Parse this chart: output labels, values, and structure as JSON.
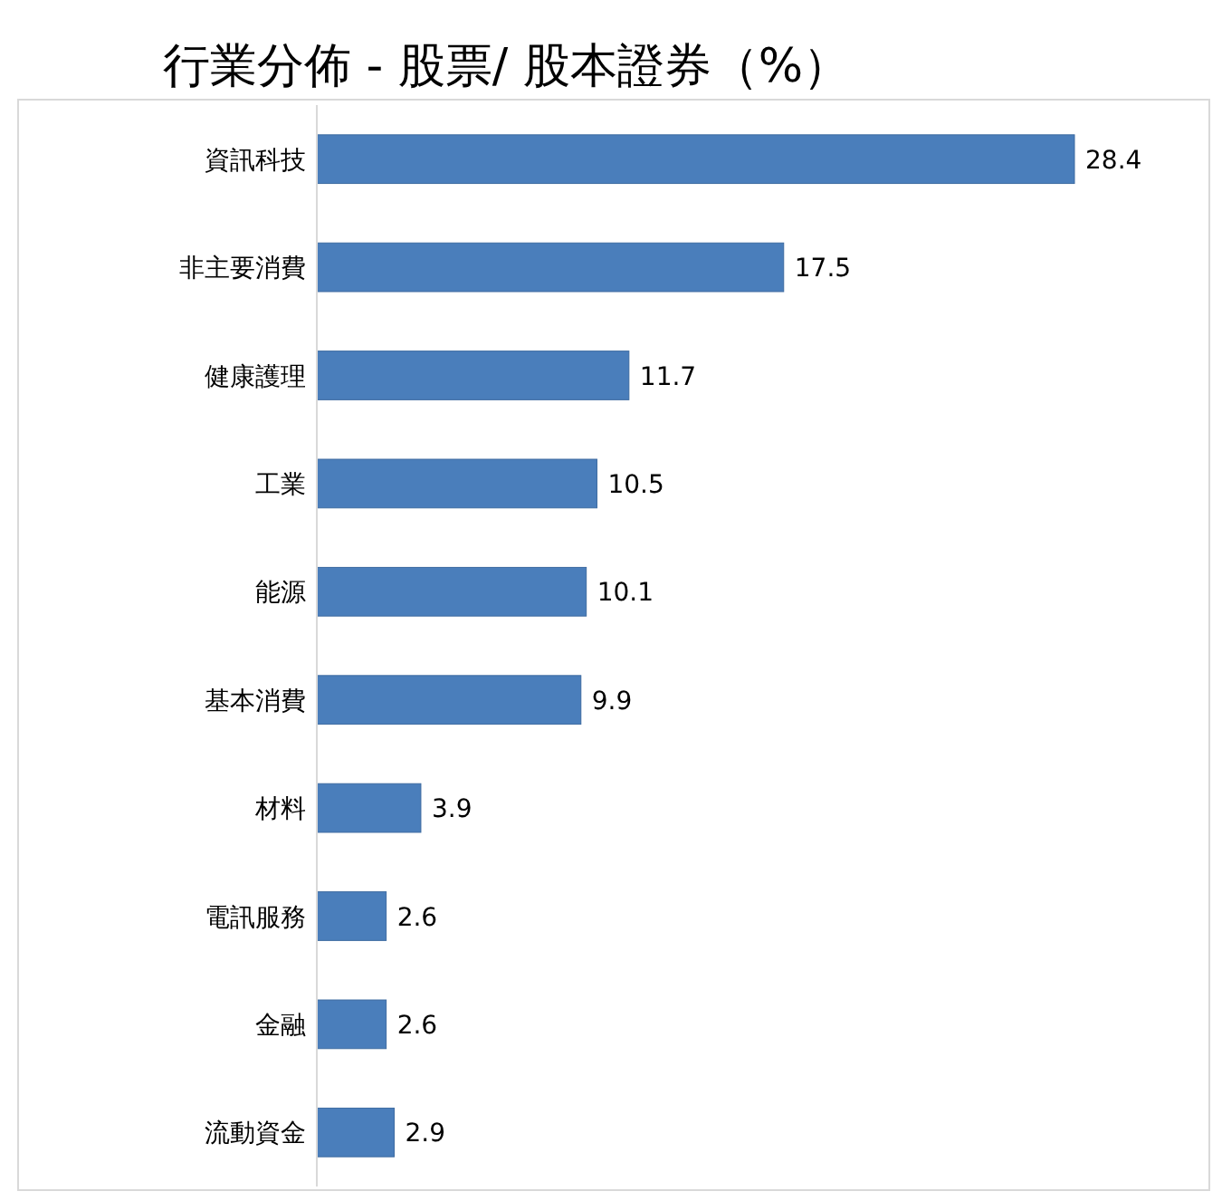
{
  "chart_data": {
    "type": "bar",
    "orientation": "horizontal",
    "title": "行業分佈 - 股票/ 股本證券（%）",
    "categories": [
      "資訊科技",
      "非主要消費",
      "健康護理",
      "工業",
      "能源",
      "基本消費",
      "材料",
      "電訊服務",
      "金融",
      "流動資金"
    ],
    "values": [
      28.4,
      17.5,
      11.7,
      10.5,
      10.1,
      9.9,
      3.9,
      2.6,
      2.6,
      2.9
    ],
    "color": "#4a7ebb",
    "data_labels": true
  }
}
